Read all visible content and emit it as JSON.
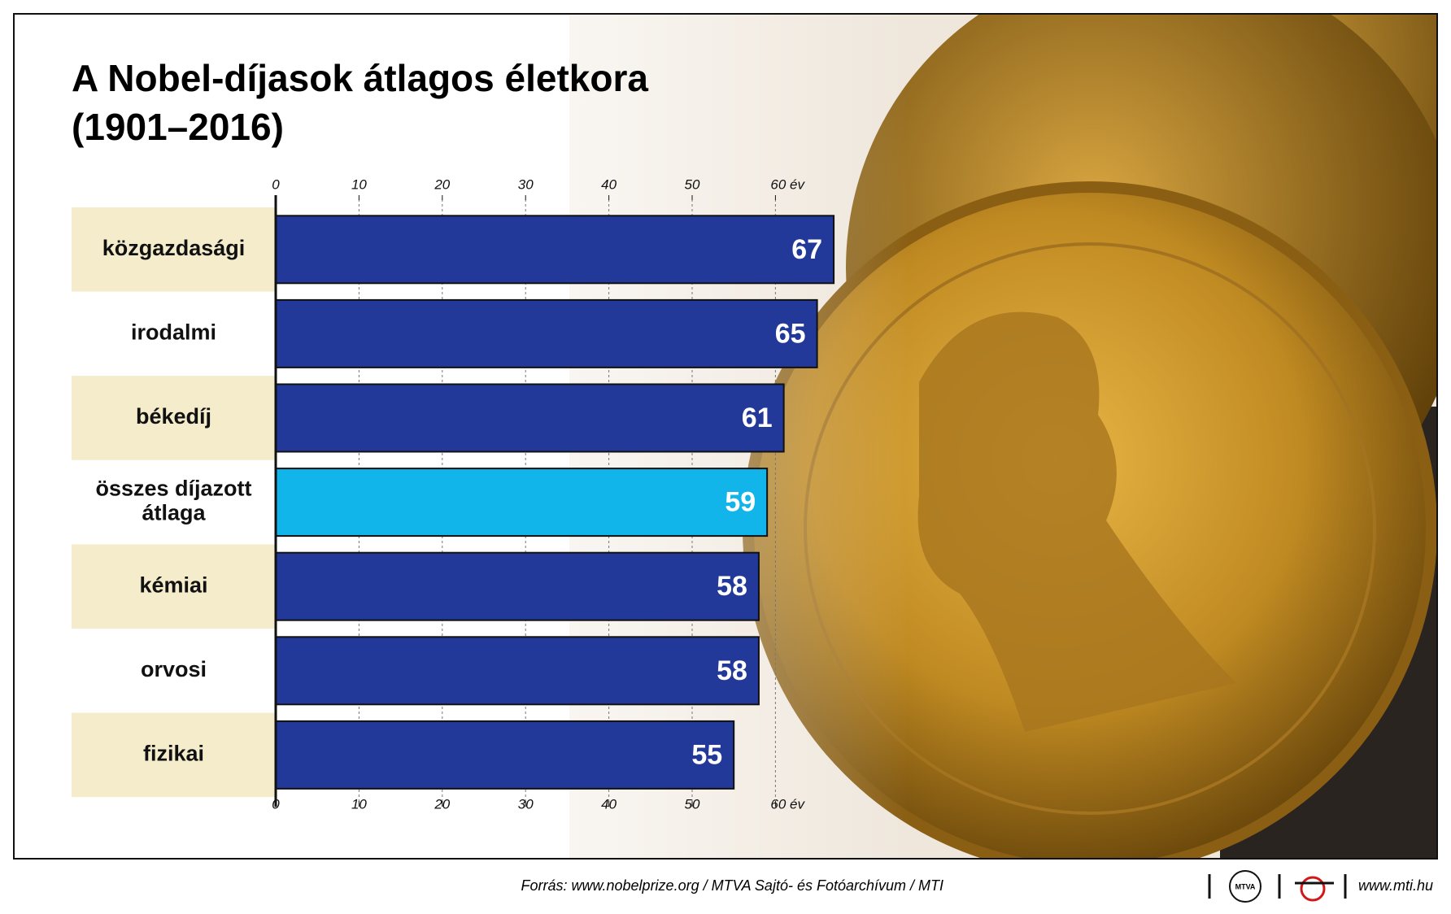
{
  "chart_data": {
    "type": "barh",
    "title": "A Nobel-díjasok átlagos életkora",
    "subtitle": "(1901–2016)",
    "categories": [
      "közgazdasági",
      "irodalmi",
      "békedíj",
      "összes díjazott átlaga",
      "kémiai",
      "orvosi",
      "fizikai"
    ],
    "values": [
      67,
      65,
      61,
      59,
      58,
      58,
      55
    ],
    "colors": [
      "#22399a",
      "#22399a",
      "#22399a",
      "#12b5ea",
      "#22399a",
      "#22399a",
      "#22399a"
    ],
    "xlim": [
      0,
      70
    ],
    "xticks": [
      0,
      10,
      20,
      30,
      40,
      50,
      {
        "value": 60,
        "label": "60 év"
      }
    ],
    "grid": true,
    "source": "Forrás: www.nobelprize.org / MTVA Sajtó- és Fotóarchívum / MTI",
    "logo": "MTVA",
    "website": "www.mti.hu"
  }
}
